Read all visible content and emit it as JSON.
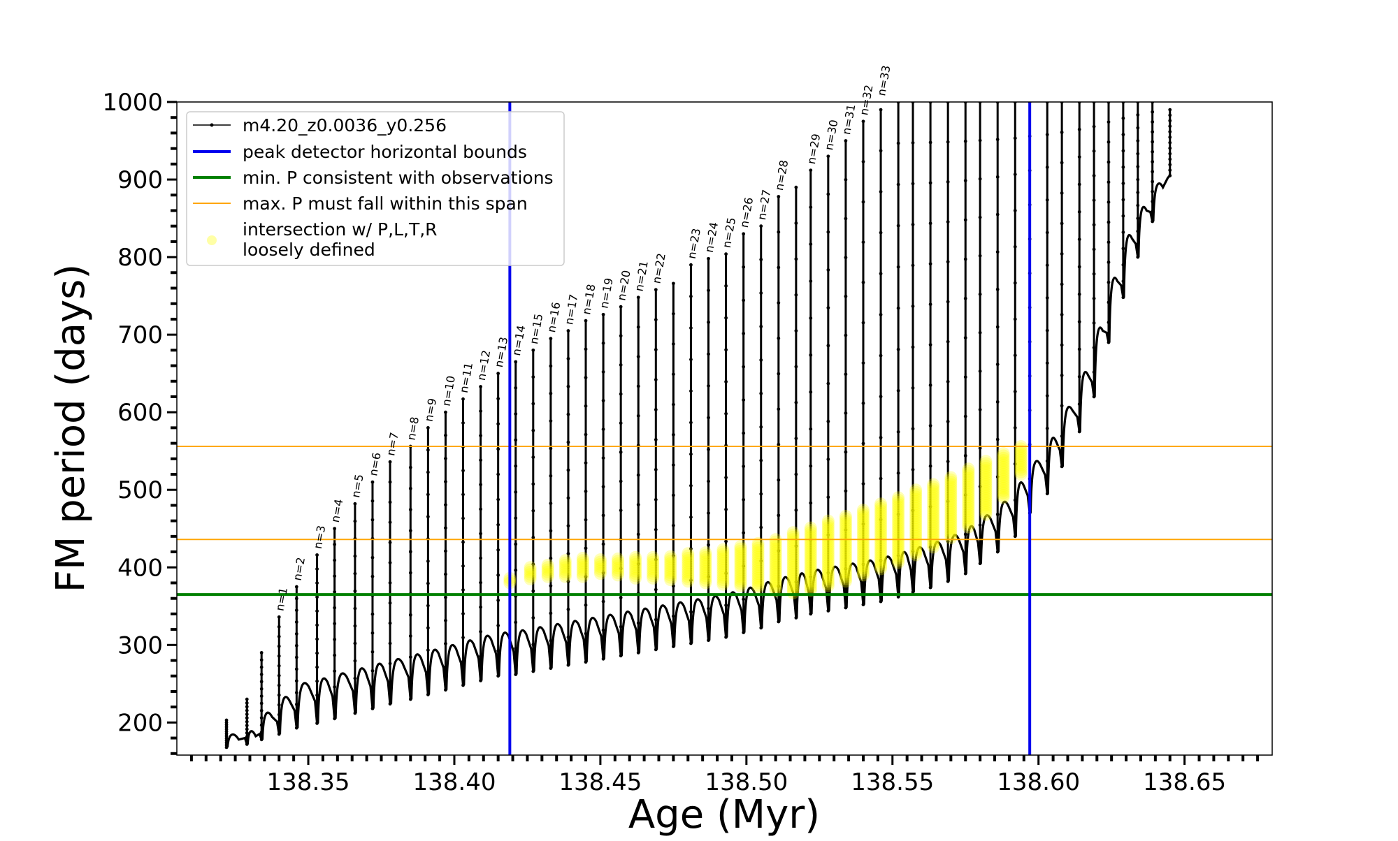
{
  "chart_data": {
    "type": "scatter",
    "xlabel": "Age (Myr)",
    "ylabel": "FM period (days)",
    "xlim": [
      138.305,
      138.68
    ],
    "ylim": [
      158,
      1000
    ],
    "xticks": [
      138.35,
      138.4,
      138.45,
      138.5,
      138.55,
      138.6,
      138.65
    ],
    "xtick_labels": [
      "138.35",
      "138.40",
      "138.45",
      "138.50",
      "138.55",
      "138.60",
      "138.65"
    ],
    "yticks": [
      200,
      300,
      400,
      500,
      600,
      700,
      800,
      900,
      1000
    ],
    "ytick_labels": [
      "200",
      "300",
      "400",
      "500",
      "600",
      "700",
      "800",
      "900",
      "1000"
    ],
    "legend_position": "top-left",
    "legend": [
      {
        "label": "m4.20_z0.0036_y0.256",
        "kind": "line-marker",
        "color": "#000000"
      },
      {
        "label": "peak detector horizontal bounds",
        "kind": "line",
        "color": "#0000ee"
      },
      {
        "label": "min. P consistent with observations",
        "kind": "line",
        "color": "#008000"
      },
      {
        "label": "max. P must fall within this span",
        "kind": "line",
        "color": "#ffa500"
      },
      {
        "label": "intersection w/ P,L,T,R",
        "label_line2": "loosely defined",
        "kind": "point",
        "color": "#ffff00"
      }
    ],
    "series": [
      {
        "name": "m4.20_z0.0036_y0.256",
        "color": "#000000",
        "pulses": [
          {
            "x": 138.322,
            "peak": 203,
            "min": 168
          },
          {
            "x": 138.329,
            "peak": 230,
            "min": 172
          },
          {
            "x": 138.334,
            "peak": 290,
            "min": 178
          },
          {
            "x": 138.34,
            "peak": 336,
            "min": 185
          },
          {
            "x": 138.346,
            "peak": 375,
            "min": 193
          },
          {
            "x": 138.353,
            "peak": 416,
            "min": 199
          },
          {
            "x": 138.359,
            "peak": 450,
            "min": 205
          },
          {
            "x": 138.366,
            "peak": 482,
            "min": 212
          },
          {
            "x": 138.372,
            "peak": 510,
            "min": 218
          },
          {
            "x": 138.378,
            "peak": 536,
            "min": 224
          },
          {
            "x": 138.385,
            "peak": 556,
            "min": 230
          },
          {
            "x": 138.391,
            "peak": 580,
            "min": 236
          },
          {
            "x": 138.397,
            "peak": 600,
            "min": 242
          },
          {
            "x": 138.403,
            "peak": 617,
            "min": 248
          },
          {
            "x": 138.409,
            "peak": 633,
            "min": 254
          },
          {
            "x": 138.415,
            "peak": 650,
            "min": 260
          },
          {
            "x": 138.421,
            "peak": 665,
            "min": 262
          },
          {
            "x": 138.427,
            "peak": 680,
            "min": 266
          },
          {
            "x": 138.433,
            "peak": 695,
            "min": 270
          },
          {
            "x": 138.439,
            "peak": 705,
            "min": 274
          },
          {
            "x": 138.445,
            "peak": 718,
            "min": 278
          },
          {
            "x": 138.451,
            "peak": 726,
            "min": 282
          },
          {
            "x": 138.457,
            "peak": 736,
            "min": 286
          },
          {
            "x": 138.463,
            "peak": 748,
            "min": 290
          },
          {
            "x": 138.469,
            "peak": 758,
            "min": 294
          },
          {
            "x": 138.475,
            "peak": 766,
            "min": 298
          },
          {
            "x": 138.481,
            "peak": 790,
            "min": 302
          },
          {
            "x": 138.487,
            "peak": 798,
            "min": 306
          },
          {
            "x": 138.493,
            "peak": 804,
            "min": 310
          },
          {
            "x": 138.499,
            "peak": 830,
            "min": 316
          },
          {
            "x": 138.505,
            "peak": 840,
            "min": 322
          },
          {
            "x": 138.511,
            "peak": 878,
            "min": 330
          },
          {
            "x": 138.517,
            "peak": 890,
            "min": 335
          },
          {
            "x": 138.522,
            "peak": 912,
            "min": 340
          },
          {
            "x": 138.528,
            "peak": 930,
            "min": 344
          },
          {
            "x": 138.534,
            "peak": 950,
            "min": 348
          },
          {
            "x": 138.54,
            "peak": 975,
            "min": 352
          },
          {
            "x": 138.546,
            "peak": 990,
            "min": 356
          },
          {
            "x": 138.552,
            "peak": 1000,
            "min": 362
          },
          {
            "x": 138.557,
            "peak": 1000,
            "min": 368
          },
          {
            "x": 138.563,
            "peak": 1000,
            "min": 374
          },
          {
            "x": 138.569,
            "peak": 1000,
            "min": 382
          },
          {
            "x": 138.575,
            "peak": 1000,
            "min": 392
          },
          {
            "x": 138.58,
            "peak": 1000,
            "min": 405
          },
          {
            "x": 138.586,
            "peak": 1000,
            "min": 420
          },
          {
            "x": 138.592,
            "peak": 1000,
            "min": 440
          },
          {
            "x": 138.597,
            "peak": 1000,
            "min": 470
          },
          {
            "x": 138.603,
            "peak": 1000,
            "min": 495
          },
          {
            "x": 138.608,
            "peak": 1000,
            "min": 530
          },
          {
            "x": 138.614,
            "peak": 1000,
            "min": 575
          },
          {
            "x": 138.619,
            "peak": 1000,
            "min": 620
          },
          {
            "x": 138.624,
            "peak": 1000,
            "min": 690
          },
          {
            "x": 138.629,
            "peak": 1000,
            "min": 748
          },
          {
            "x": 138.634,
            "peak": 1000,
            "min": 800
          },
          {
            "x": 138.639,
            "peak": 1000,
            "min": 846
          },
          {
            "x": 138.645,
            "peak": 990,
            "min": 905
          }
        ]
      }
    ],
    "n_labels": [
      {
        "text": "n=1",
        "x": 138.34,
        "y": 336
      },
      {
        "text": "n=2",
        "x": 138.346,
        "y": 375
      },
      {
        "text": "n=3",
        "x": 138.353,
        "y": 416
      },
      {
        "text": "n=4",
        "x": 138.359,
        "y": 450
      },
      {
        "text": "n=5",
        "x": 138.366,
        "y": 482
      },
      {
        "text": "n=6",
        "x": 138.372,
        "y": 510
      },
      {
        "text": "n=7",
        "x": 138.378,
        "y": 536
      },
      {
        "text": "n=8",
        "x": 138.385,
        "y": 556
      },
      {
        "text": "n=9",
        "x": 138.391,
        "y": 580
      },
      {
        "text": "n=10",
        "x": 138.397,
        "y": 600
      },
      {
        "text": "n=11",
        "x": 138.403,
        "y": 617
      },
      {
        "text": "n=12",
        "x": 138.409,
        "y": 633
      },
      {
        "text": "n=13",
        "x": 138.415,
        "y": 650
      },
      {
        "text": "n=14",
        "x": 138.421,
        "y": 665
      },
      {
        "text": "n=15",
        "x": 138.427,
        "y": 680
      },
      {
        "text": "n=16",
        "x": 138.433,
        "y": 695
      },
      {
        "text": "n=17",
        "x": 138.439,
        "y": 705
      },
      {
        "text": "n=18",
        "x": 138.445,
        "y": 718
      },
      {
        "text": "n=19",
        "x": 138.451,
        "y": 726
      },
      {
        "text": "n=20",
        "x": 138.457,
        "y": 736
      },
      {
        "text": "n=21",
        "x": 138.463,
        "y": 748
      },
      {
        "text": "n=22",
        "x": 138.469,
        "y": 758
      },
      {
        "text": "n=23",
        "x": 138.481,
        "y": 790
      },
      {
        "text": "n=24",
        "x": 138.487,
        "y": 798
      },
      {
        "text": "n=25",
        "x": 138.493,
        "y": 804
      },
      {
        "text": "n=26",
        "x": 138.499,
        "y": 830
      },
      {
        "text": "n=27",
        "x": 138.505,
        "y": 840
      },
      {
        "text": "n=28",
        "x": 138.511,
        "y": 878
      },
      {
        "text": "n=29",
        "x": 138.522,
        "y": 912
      },
      {
        "text": "n=30",
        "x": 138.528,
        "y": 930
      },
      {
        "text": "n=31",
        "x": 138.534,
        "y": 950
      },
      {
        "text": "n=32",
        "x": 138.54,
        "y": 975
      },
      {
        "text": "n=33",
        "x": 138.546,
        "y": 1000
      }
    ],
    "vlines": [
      {
        "x": 138.419,
        "color": "#0000ee",
        "label": "peak detector horizontal bounds"
      },
      {
        "x": 138.597,
        "color": "#0000ee",
        "label": "peak detector horizontal bounds"
      }
    ],
    "hlines": [
      {
        "y": 365,
        "color": "#008000",
        "label": "min. P consistent with observations"
      },
      {
        "y": 436,
        "color": "#ffa500",
        "label": "max. P must fall within this span"
      },
      {
        "y": 556,
        "color": "#ffa500",
        "label": "max. P must fall within this span"
      }
    ],
    "intersection": {
      "name": "intersection w/ P,L,T,R loosely defined",
      "color": "#ffff00",
      "bands": [
        {
          "x": 138.419,
          "low": 380,
          "high": 386
        },
        {
          "x": 138.426,
          "low": 385,
          "high": 402
        },
        {
          "x": 138.432,
          "low": 388,
          "high": 404
        },
        {
          "x": 138.438,
          "low": 388,
          "high": 410
        },
        {
          "x": 138.444,
          "low": 388,
          "high": 412
        },
        {
          "x": 138.45,
          "low": 392,
          "high": 410
        },
        {
          "x": 138.456,
          "low": 390,
          "high": 412
        },
        {
          "x": 138.462,
          "low": 386,
          "high": 414
        },
        {
          "x": 138.468,
          "low": 386,
          "high": 414
        },
        {
          "x": 138.474,
          "low": 384,
          "high": 416
        },
        {
          "x": 138.48,
          "low": 382,
          "high": 418
        },
        {
          "x": 138.486,
          "low": 380,
          "high": 420
        },
        {
          "x": 138.492,
          "low": 378,
          "high": 424
        },
        {
          "x": 138.498,
          "low": 376,
          "high": 428
        },
        {
          "x": 138.504,
          "low": 374,
          "high": 432
        },
        {
          "x": 138.51,
          "low": 370,
          "high": 438
        },
        {
          "x": 138.516,
          "low": 367,
          "high": 446
        },
        {
          "x": 138.522,
          "low": 370,
          "high": 452
        },
        {
          "x": 138.528,
          "low": 376,
          "high": 460
        },
        {
          "x": 138.534,
          "low": 382,
          "high": 468
        },
        {
          "x": 138.54,
          "low": 390,
          "high": 476
        },
        {
          "x": 138.546,
          "low": 398,
          "high": 484
        },
        {
          "x": 138.552,
          "low": 406,
          "high": 492
        },
        {
          "x": 138.558,
          "low": 416,
          "high": 500
        },
        {
          "x": 138.564,
          "low": 426,
          "high": 508
        },
        {
          "x": 138.57,
          "low": 438,
          "high": 518
        },
        {
          "x": 138.576,
          "low": 452,
          "high": 528
        },
        {
          "x": 138.582,
          "low": 468,
          "high": 538
        },
        {
          "x": 138.588,
          "low": 490,
          "high": 548
        },
        {
          "x": 138.594,
          "low": 520,
          "high": 556
        }
      ]
    }
  }
}
